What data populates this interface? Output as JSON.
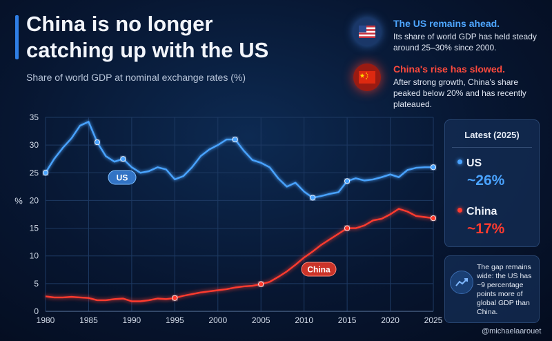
{
  "header": {
    "title_line1": "China is no longer",
    "title_line2": "catching up with the US",
    "subtitle": "Share of world GDP at nominal exchange rates (%)"
  },
  "callouts": [
    {
      "head": "The US remains ahead.",
      "body": "Its share of world GDP has held steady around 25–30% since 2000.",
      "icon": "us-flag-icon"
    },
    {
      "head": "China's rise has slowed.",
      "body": "After strong growth, China's share peaked below 20% and has recently plateaued.",
      "icon": "china-flag-icon"
    }
  ],
  "latest": {
    "title": "Latest (2025)",
    "us_name": "US",
    "us_value": "~26%",
    "china_name": "China",
    "china_value": "~17%"
  },
  "gap_note": {
    "text": "The gap remains wide: the US has ~9 percentage points more of global GDP than China.",
    "icon": "trend-up-icon"
  },
  "credit": "@michaelaarouet",
  "colors": {
    "us": "#4aa3ff",
    "china": "#ff3b2f",
    "grid": "#1e3a63"
  },
  "chart_data": {
    "type": "line",
    "ylabel": "%",
    "xlim": [
      1980,
      2025
    ],
    "ylim": [
      0,
      35
    ],
    "x_ticks": [
      1980,
      1985,
      1990,
      1995,
      2000,
      2005,
      2010,
      2015,
      2020,
      2025
    ],
    "y_ticks": [
      0,
      5,
      10,
      15,
      20,
      25,
      30,
      35
    ],
    "grid": true,
    "series": [
      {
        "name": "US",
        "x": [
          1980,
          1981,
          1982,
          1983,
          1984,
          1985,
          1986,
          1987,
          1988,
          1989,
          1990,
          1991,
          1992,
          1993,
          1994,
          1995,
          1996,
          1997,
          1998,
          1999,
          2000,
          2001,
          2002,
          2003,
          2004,
          2005,
          2006,
          2007,
          2008,
          2009,
          2010,
          2011,
          2012,
          2013,
          2014,
          2015,
          2016,
          2017,
          2018,
          2019,
          2020,
          2021,
          2022,
          2023,
          2024,
          2025
        ],
        "values": [
          25.0,
          27.5,
          29.5,
          31.2,
          33.5,
          34.2,
          30.5,
          28.0,
          27.0,
          27.5,
          26.0,
          25.0,
          25.3,
          26.0,
          25.6,
          23.8,
          24.4,
          26.0,
          28.0,
          29.2,
          30.0,
          31.0,
          31.0,
          29.0,
          27.3,
          26.8,
          26.0,
          24.0,
          22.5,
          23.2,
          21.6,
          20.5,
          20.8,
          21.2,
          21.5,
          23.5,
          24.0,
          23.6,
          23.8,
          24.2,
          24.7,
          24.2,
          25.5,
          25.9,
          26.0,
          26.0
        ]
      },
      {
        "name": "China",
        "x": [
          1980,
          1981,
          1982,
          1983,
          1984,
          1985,
          1986,
          1987,
          1988,
          1989,
          1990,
          1991,
          1992,
          1993,
          1994,
          1995,
          1996,
          1997,
          1998,
          1999,
          2000,
          2001,
          2002,
          2003,
          2004,
          2005,
          2006,
          2007,
          2008,
          2009,
          2010,
          2011,
          2012,
          2013,
          2014,
          2015,
          2016,
          2017,
          2018,
          2019,
          2020,
          2021,
          2022,
          2023,
          2024,
          2025
        ],
        "values": [
          2.7,
          2.5,
          2.5,
          2.6,
          2.5,
          2.4,
          2.0,
          2.0,
          2.2,
          2.3,
          1.8,
          1.8,
          2.0,
          2.3,
          2.2,
          2.4,
          2.8,
          3.1,
          3.4,
          3.6,
          3.8,
          4.0,
          4.3,
          4.5,
          4.6,
          4.9,
          5.3,
          6.2,
          7.2,
          8.4,
          9.7,
          10.8,
          12.0,
          13.0,
          14.0,
          15.0,
          15.0,
          15.5,
          16.4,
          16.7,
          17.5,
          18.5,
          18.0,
          17.2,
          17.0,
          16.8
        ]
      }
    ],
    "markers": {
      "US": [
        1980,
        1986,
        1989,
        2002,
        2011,
        2015,
        2025
      ],
      "China": [
        1995,
        2005,
        2015,
        2025
      ]
    },
    "annotations": [
      "US",
      "China"
    ]
  }
}
